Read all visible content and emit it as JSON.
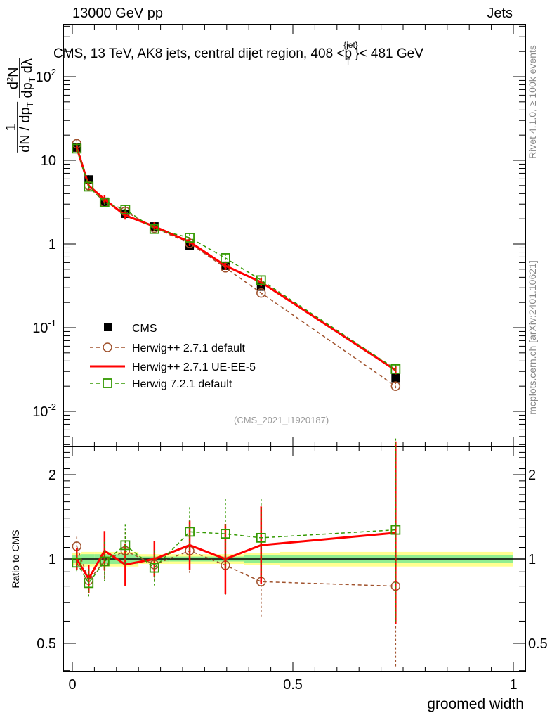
{
  "header": {
    "left": "13000 GeV pp",
    "right": "Jets"
  },
  "side_text": {
    "rivet": "Rivet 4.1.0, ≥ 100k events",
    "mcplots": "mcplots.cern.ch [arXiv:2401.10621]"
  },
  "chart_data": [
    {
      "type": "line",
      "title": "CMS, 13 TeV, AK8 jets, central dijet region, 408 < pT{jet} < 481 GeV",
      "title_parts": {
        "main": "CMS, 13 TeV, AK8 jets, central dijet region, 408 <p",
        "sup": "{jet}",
        "sub": "T",
        "end": "}< 481 GeV"
      },
      "ylabel": "1/dN/dpT · d²N/dpT dλ",
      "yscale": "log",
      "ylim": [
        0.004,
        400
      ],
      "yticks": [
        {
          "v": 0.01,
          "l": "10",
          "e": "-2"
        },
        {
          "v": 0.1,
          "l": "10",
          "e": "-1"
        },
        {
          "v": 1,
          "l": "1",
          "e": ""
        },
        {
          "v": 10,
          "l": "10",
          "e": ""
        },
        {
          "v": 100,
          "l": "10",
          "e": "2"
        }
      ],
      "x": [
        0.01,
        0.037,
        0.073,
        0.12,
        0.186,
        0.266,
        0.347,
        0.428,
        0.733
      ],
      "annotation": "(CMS_2021_I1920187)",
      "series": [
        {
          "name": "CMS",
          "values": [
            14.2,
            5.9,
            3.2,
            2.3,
            1.62,
            0.95,
            0.55,
            0.31,
            0.025
          ],
          "color": "#000000",
          "style": "data"
        },
        {
          "name": "Herwig++ 2.7.1 default",
          "values": [
            15.8,
            5.0,
            3.14,
            2.46,
            1.55,
            1.02,
            0.52,
            0.26,
            0.02
          ],
          "color": "#a0522d",
          "style": "circle"
        },
        {
          "name": "Herwig++ 2.7.1 UE-EE-5",
          "values": [
            14.2,
            5.0,
            3.42,
            2.2,
            1.62,
            1.06,
            0.55,
            0.35,
            0.031
          ],
          "color": "#ff0000",
          "style": "line"
        },
        {
          "name": "Herwig 7.2.1 default",
          "values": [
            13.8,
            4.85,
            3.14,
            2.58,
            1.51,
            1.19,
            0.68,
            0.37,
            0.032
          ],
          "color": "#339900",
          "style": "square"
        }
      ]
    },
    {
      "type": "line",
      "ylabel": "Ratio to CMS",
      "xlabel": "groomed width",
      "yscale": "log",
      "ylim": [
        0.4,
        2.52
      ],
      "xlim": [
        -0.02,
        1.02
      ],
      "yticks": [
        {
          "v": 0.5,
          "l": "0.5"
        },
        {
          "v": 1,
          "l": "1"
        },
        {
          "v": 2,
          "l": "2"
        }
      ],
      "xticks": [
        {
          "v": 0,
          "l": "0"
        },
        {
          "v": 0.5,
          "l": "0.5"
        },
        {
          "v": 1,
          "l": "1"
        }
      ],
      "series": [
        {
          "name": "Herwig++ 2.7.1 default",
          "values": [
            1.11,
            0.84,
            0.98,
            1.07,
            0.955,
            1.07,
            0.95,
            0.83,
            0.8
          ]
        },
        {
          "name": "Herwig++ 2.7.1 UE-EE-5",
          "values": [
            1.0,
            0.85,
            1.07,
            0.955,
            1.0,
            1.12,
            1.0,
            1.12,
            1.24
          ]
        },
        {
          "name": "Herwig 7.2.1 default",
          "values": [
            0.97,
            0.82,
            0.98,
            1.12,
            0.93,
            1.25,
            1.23,
            1.19,
            1.27
          ]
        }
      ]
    }
  ]
}
